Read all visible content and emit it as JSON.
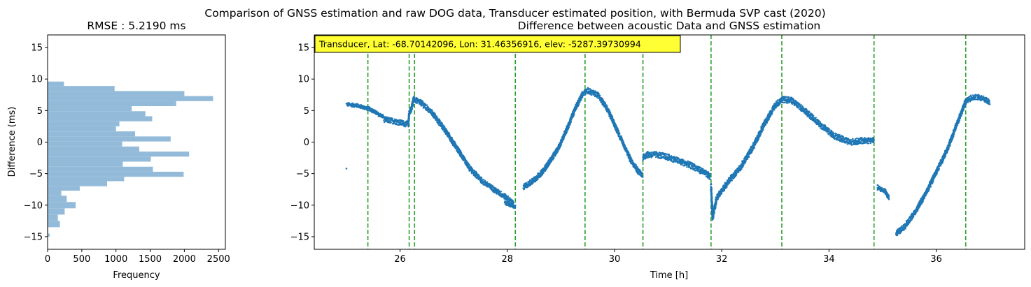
{
  "figure": {
    "suptitle": "Comparison of GNSS estimation and raw DOG data, Transducer estimated position, with Bermuda SVP cast (2020)"
  },
  "colors": {
    "histogram": "#93bbd9",
    "scatter": "#1f77b4",
    "vlines": "#2ca02c",
    "annotation_bg": "#ffff33"
  },
  "chart_data": [
    {
      "type": "bar",
      "orientation": "horizontal",
      "title": "RMSE : 5.2190 ms",
      "xlabel": "Frequency",
      "ylabel": "Difference (ms)",
      "xlim": [
        0,
        2600
      ],
      "ylim": [
        -17,
        17
      ],
      "xticks": [
        0,
        500,
        1000,
        1500,
        2000,
        2500
      ],
      "yticks": [
        -15,
        -10,
        -5,
        0,
        5,
        10,
        15
      ],
      "bins": [
        {
          "lo": -15.0,
          "hi": -14.5,
          "count": 30
        },
        {
          "lo": -14.5,
          "hi": -13.5,
          "count": 10
        },
        {
          "lo": -13.5,
          "hi": -12.5,
          "count": 180
        },
        {
          "lo": -12.5,
          "hi": -11.5,
          "count": 150
        },
        {
          "lo": -11.5,
          "hi": -10.5,
          "count": 250
        },
        {
          "lo": -10.5,
          "hi": -9.5,
          "count": 410
        },
        {
          "lo": -9.5,
          "hi": -8.5,
          "count": 280
        },
        {
          "lo": -8.5,
          "hi": -7.7,
          "count": 200
        },
        {
          "lo": -7.7,
          "hi": -7.0,
          "count": 470
        },
        {
          "lo": -7.0,
          "hi": -6.2,
          "count": 870
        },
        {
          "lo": -6.2,
          "hi": -5.5,
          "count": 1120
        },
        {
          "lo": -5.5,
          "hi": -4.7,
          "count": 1990
        },
        {
          "lo": -4.7,
          "hi": -3.9,
          "count": 1540
        },
        {
          "lo": -3.9,
          "hi": -3.1,
          "count": 1100
        },
        {
          "lo": -3.1,
          "hi": -2.3,
          "count": 1510
        },
        {
          "lo": -2.3,
          "hi": -1.5,
          "count": 2070
        },
        {
          "lo": -1.5,
          "hi": -0.7,
          "count": 1340
        },
        {
          "lo": -0.7,
          "hi": 0.1,
          "count": 1090
        },
        {
          "lo": 0.1,
          "hi": 0.9,
          "count": 1800
        },
        {
          "lo": 0.9,
          "hi": 1.7,
          "count": 1280
        },
        {
          "lo": 1.7,
          "hi": 2.5,
          "count": 1000
        },
        {
          "lo": 2.5,
          "hi": 3.3,
          "count": 1050
        },
        {
          "lo": 3.3,
          "hi": 4.1,
          "count": 1530
        },
        {
          "lo": 4.1,
          "hi": 4.9,
          "count": 1430
        },
        {
          "lo": 4.9,
          "hi": 5.7,
          "count": 1230
        },
        {
          "lo": 5.7,
          "hi": 6.5,
          "count": 1880
        },
        {
          "lo": 6.5,
          "hi": 7.3,
          "count": 2420
        },
        {
          "lo": 7.3,
          "hi": 8.1,
          "count": 2000
        },
        {
          "lo": 8.1,
          "hi": 8.9,
          "count": 980
        },
        {
          "lo": 8.9,
          "hi": 9.6,
          "count": 240
        }
      ]
    },
    {
      "type": "scatter",
      "title": "Difference between acoustic Data and GNSS estimation",
      "xlabel": "Time [h]",
      "ylabel": "",
      "xlim": [
        24.4,
        37.65
      ],
      "ylim": [
        -17,
        17
      ],
      "xticks": [
        26,
        28,
        30,
        32,
        34,
        36
      ],
      "yticks": [
        -15,
        -10,
        -5,
        0,
        5,
        10,
        15
      ],
      "annotation": "Transducer, Lat: -68.70142096, Lon: 31.46356916, elev: -5287.39730994",
      "vlines": [
        25.4,
        26.17,
        26.27,
        28.15,
        29.45,
        30.53,
        31.8,
        33.12,
        34.84,
        36.55
      ],
      "isolated_points": [
        [
          25.0,
          -4.2
        ]
      ],
      "series": [
        {
          "points": [
            [
              25.0,
              6.0
            ],
            [
              25.2,
              5.8
            ],
            [
              25.45,
              5.2
            ],
            [
              25.6,
              4.4
            ],
            [
              25.7,
              4.0
            ]
          ],
          "spread": 0.6
        },
        {
          "points": [
            [
              25.7,
              3.6
            ],
            [
              25.9,
              3.3
            ],
            [
              26.15,
              2.8
            ],
            [
              26.17,
              4.5
            ],
            [
              26.22,
              5.5
            ],
            [
              26.25,
              6.8
            ],
            [
              26.4,
              6.2
            ],
            [
              26.6,
              4.6
            ],
            [
              26.85,
              1.8
            ],
            [
              27.1,
              -1.5
            ],
            [
              27.3,
              -4.2
            ],
            [
              27.55,
              -6.3
            ],
            [
              27.8,
              -7.8
            ],
            [
              27.95,
              -8.6
            ],
            [
              28.05,
              -9.3
            ],
            [
              28.12,
              -9.8
            ]
          ],
          "spread": 0.9
        },
        {
          "points": [
            [
              27.95,
              -9.6
            ],
            [
              28.05,
              -10.0
            ],
            [
              28.15,
              -10.3
            ]
          ],
          "spread": 0.5
        },
        {
          "points": [
            [
              28.3,
              -7.2
            ],
            [
              28.5,
              -6.0
            ],
            [
              28.65,
              -4.8
            ],
            [
              28.8,
              -3.0
            ],
            [
              28.95,
              -1.0
            ],
            [
              29.1,
              1.8
            ],
            [
              29.25,
              5.0
            ],
            [
              29.4,
              7.6
            ],
            [
              29.5,
              8.2
            ],
            [
              29.7,
              7.4
            ],
            [
              29.85,
              5.5
            ],
            [
              30.0,
              2.8
            ],
            [
              30.15,
              0.0
            ],
            [
              30.3,
              -2.8
            ],
            [
              30.45,
              -4.7
            ],
            [
              30.53,
              -5.2
            ]
          ],
          "spread": 0.9
        },
        {
          "points": [
            [
              30.53,
              -2.5
            ],
            [
              30.6,
              -2.0
            ],
            [
              30.8,
              -2.0
            ],
            [
              31.0,
              -2.4
            ],
            [
              31.2,
              -3.0
            ],
            [
              31.45,
              -3.8
            ],
            [
              31.65,
              -4.7
            ],
            [
              31.79,
              -5.5
            ]
          ],
          "spread": 1.0
        },
        {
          "points": [
            [
              31.8,
              -7.0
            ],
            [
              31.83,
              -12.0
            ],
            [
              31.9,
              -9.0
            ],
            [
              32.1,
              -6.5
            ],
            [
              32.35,
              -4.0
            ],
            [
              32.6,
              -0.5
            ],
            [
              32.8,
              3.0
            ],
            [
              33.0,
              5.8
            ],
            [
              33.12,
              6.8
            ],
            [
              33.3,
              6.6
            ],
            [
              33.55,
              5.0
            ],
            [
              33.8,
              3.0
            ],
            [
              34.1,
              1.0
            ],
            [
              34.4,
              0.0
            ],
            [
              34.6,
              0.2
            ],
            [
              34.84,
              0.3
            ]
          ],
          "spread": 1.0
        },
        {
          "points": [
            [
              34.9,
              -7.2
            ],
            [
              35.05,
              -7.8
            ],
            [
              35.12,
              -9.0
            ]
          ],
          "spread": 0.8
        },
        {
          "points": [
            [
              35.25,
              -14.5
            ],
            [
              35.4,
              -13.5
            ],
            [
              35.6,
              -11.2
            ],
            [
              35.8,
              -8.2
            ],
            [
              36.0,
              -4.8
            ],
            [
              36.2,
              -1.3
            ],
            [
              36.4,
              3.2
            ],
            [
              36.55,
              6.5
            ],
            [
              36.7,
              7.2
            ],
            [
              36.85,
              7.0
            ],
            [
              37.0,
              6.3
            ]
          ],
          "spread": 0.9
        }
      ]
    }
  ]
}
